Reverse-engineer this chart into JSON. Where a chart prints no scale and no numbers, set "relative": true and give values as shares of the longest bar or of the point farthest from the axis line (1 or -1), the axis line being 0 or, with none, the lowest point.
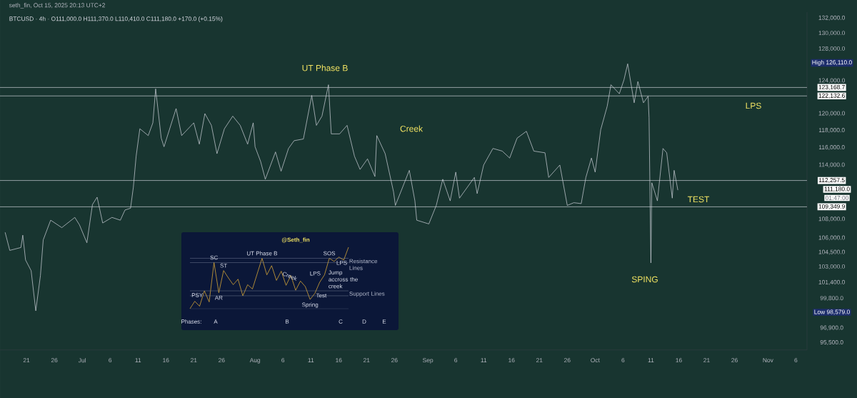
{
  "chart_data": [
    {
      "type": "line",
      "title": "BTCUSD · 4h · O111,000.0 H111,370.0 L110,410.0 C111,180.0 +170.0 (+0.15%)",
      "subtitle": "seth_fin, Oct 15, 2025 20:13 UTC+2",
      "color": "#c9cdd6",
      "line_style": "solid",
      "log": "y",
      "x": [
        "2025-06-17T04:00",
        "2025-06-18T00:00",
        "2025-06-20T00:00",
        "2025-06-20T08:00",
        "2025-06-20T20:00",
        "2025-06-21T20:00",
        "2025-06-22T16:00",
        "2025-06-23T12:00",
        "2025-06-24T00:00",
        "2025-06-25T08:00",
        "2025-06-27T08:00",
        "2025-06-29T16:00",
        "2025-06-30T12:00",
        "2025-07-01T20:00",
        "2025-07-02T20:00",
        "2025-07-03T16:00",
        "2025-07-04T16:00",
        "2025-07-06T08:00",
        "2025-07-07T20:00",
        "2025-07-08T16:00",
        "2025-07-09T16:00",
        "2025-07-10T04:00",
        "2025-07-10T16:00",
        "2025-07-11T08:00",
        "2025-07-12T20:00",
        "2025-07-13T16:00",
        "2025-07-14T04:00",
        "2025-07-15T04:00",
        "2025-07-15T16:00",
        "2025-07-17T20:00",
        "2025-07-18T20:00",
        "2025-07-21T00:00",
        "2025-07-22T00:00",
        "2025-07-23T00:00",
        "2025-07-24T04:00",
        "2025-07-25T04:00",
        "2025-07-26T12:00",
        "2025-07-28T00:00",
        "2025-07-29T08:00",
        "2025-07-30T16:00",
        "2025-07-31T16:00",
        "2025-08-01T00:00",
        "2025-08-02T00:00",
        "2025-08-02T20:00",
        "2025-08-04T16:00",
        "2025-08-05T16:00",
        "2025-08-07T00:00",
        "2025-08-08T00:00",
        "2025-08-09T16:00",
        "2025-08-11T04:00",
        "2025-08-12T00:00",
        "2025-08-13T00:00",
        "2025-08-14T04:00",
        "2025-08-14T16:00",
        "2025-08-16T04:00",
        "2025-08-17T12:00",
        "2025-08-18T20:00",
        "2025-08-19T20:00",
        "2025-08-21T04:00",
        "2025-08-22T12:00",
        "2025-08-22T20:00",
        "2025-08-24T08:00",
        "2025-08-25T20:00",
        "2025-08-26T04:00",
        "2025-08-28T16:00",
        "2025-08-29T16:00",
        "2025-08-30T00:00",
        "2025-09-01T04:00",
        "2025-09-02T12:00",
        "2025-09-03T16:00",
        "2025-09-05T00:00",
        "2025-09-06T00:00",
        "2025-09-06T16:00",
        "2025-09-09T08:00",
        "2025-09-09T20:00",
        "2025-09-11T00:00",
        "2025-09-12T16:00",
        "2025-09-14T08:00",
        "2025-09-15T16:00",
        "2025-09-17T00:00",
        "2025-09-18T16:00",
        "2025-09-20T00:00",
        "2025-09-22T00:00",
        "2025-09-22T16:00",
        "2025-09-24T16:00",
        "2025-09-26T00:00",
        "2025-09-27T04:00",
        "2025-09-28T12:00",
        "2025-09-29T08:00",
        "2025-09-30T08:00",
        "2025-10-01T00:00",
        "2025-10-02T00:00",
        "2025-10-03T04:00",
        "2025-10-03T20:00",
        "2025-10-05T08:00",
        "2025-10-06T04:00",
        "2025-10-06T20:00",
        "2025-10-08T00:00",
        "2025-10-08T16:00",
        "2025-10-09T16:00",
        "2025-10-10T12:00",
        "2025-10-10T16:00",
        "2025-10-10T20:00",
        "2025-10-11T00:00",
        "2025-10-11T04:00",
        "2025-10-12T04:00",
        "2025-10-13T04:00",
        "2025-10-13T20:00",
        "2025-10-14T20:00",
        "2025-10-15T04:00",
        "2025-10-15T20:00"
      ],
      "values": [
        106600,
        104700,
        105000,
        106300,
        103700,
        102600,
        98579,
        102100,
        105800,
        107900,
        107100,
        108200,
        107400,
        105500,
        109600,
        110400,
        107600,
        108200,
        107900,
        109000,
        109200,
        111500,
        115000,
        118200,
        117400,
        118900,
        123000,
        117100,
        116100,
        120600,
        117400,
        118900,
        116400,
        120000,
        118600,
        115300,
        118200,
        119700,
        118600,
        116400,
        118900,
        116100,
        114400,
        112400,
        115500,
        113300,
        115900,
        116800,
        117000,
        122200,
        118600,
        119700,
        123500,
        117600,
        117600,
        118600,
        115000,
        113500,
        114700,
        112700,
        117400,
        115300,
        111000,
        109500,
        113400,
        110000,
        107900,
        107500,
        109500,
        112400,
        110000,
        113200,
        110300,
        112600,
        110800,
        114000,
        115900,
        115600,
        114800,
        117100,
        117900,
        115600,
        115400,
        112600,
        114000,
        109500,
        109800,
        109700,
        112600,
        114800,
        113200,
        118100,
        120900,
        123500,
        122400,
        124100,
        126110,
        121300,
        123900,
        121300,
        122100,
        119500,
        111100,
        103400,
        112000,
        110000,
        115900,
        115400,
        110300,
        113400,
        111180
      ],
      "xlim": [
        "2025-06-16T06:00",
        "2025-11-08T00:00"
      ],
      "ylim": [
        94800,
        132800
      ],
      "xticks": [
        {
          "value": "2025-06-21",
          "label": "21"
        },
        {
          "value": "2025-06-26",
          "label": "26"
        },
        {
          "value": "2025-07-01",
          "label": "Jul"
        },
        {
          "value": "2025-07-06",
          "label": "6"
        },
        {
          "value": "2025-07-11",
          "label": "11"
        },
        {
          "value": "2025-07-16",
          "label": "16"
        },
        {
          "value": "2025-07-21",
          "label": "21"
        },
        {
          "value": "2025-07-26",
          "label": "26"
        },
        {
          "value": "2025-08-01",
          "label": "Aug"
        },
        {
          "value": "2025-08-06",
          "label": "6"
        },
        {
          "value": "2025-08-11",
          "label": "11"
        },
        {
          "value": "2025-08-16",
          "label": "16"
        },
        {
          "value": "2025-08-21",
          "label": "21"
        },
        {
          "value": "2025-08-26",
          "label": "26"
        },
        {
          "value": "2025-09-01",
          "label": "Sep"
        },
        {
          "value": "2025-09-06",
          "label": "6"
        },
        {
          "value": "2025-09-11",
          "label": "11"
        },
        {
          "value": "2025-09-16",
          "label": "16"
        },
        {
          "value": "2025-09-21",
          "label": "21"
        },
        {
          "value": "2025-09-26",
          "label": "26"
        },
        {
          "value": "2025-10-01",
          "label": "Oct"
        },
        {
          "value": "2025-10-06",
          "label": "6"
        },
        {
          "value": "2025-10-11",
          "label": "11"
        },
        {
          "value": "2025-10-16",
          "label": "16"
        },
        {
          "value": "2025-10-21",
          "label": "21"
        },
        {
          "value": "2025-10-26",
          "label": "26"
        },
        {
          "value": "2025-11-01",
          "label": "Nov"
        },
        {
          "value": "2025-11-06",
          "label": "6"
        }
      ],
      "yticks": [
        {
          "value": 132000,
          "label": "132,000.0"
        },
        {
          "value": 130000,
          "label": "130,000.0"
        },
        {
          "value": 128000,
          "label": "128,000.0"
        },
        {
          "value": 124000,
          "label": "124,000.0"
        },
        {
          "value": 120000,
          "label": "120,000.0"
        },
        {
          "value": 118000,
          "label": "118,000.0"
        },
        {
          "value": 116000,
          "label": "116,000.0"
        },
        {
          "value": 114000,
          "label": "114,000.0"
        },
        {
          "value": 108000,
          "label": "108,000.0"
        },
        {
          "value": 106000,
          "label": "106,000.0"
        },
        {
          "value": 104500,
          "label": "104,500.0"
        },
        {
          "value": 103000,
          "label": "103,000.0"
        },
        {
          "value": 101400,
          "label": "101,400.0"
        },
        {
          "value": 99800,
          "label": "99,800.0"
        },
        {
          "value": 96900,
          "label": "96,900.0"
        },
        {
          "value": 95500,
          "label": "95,500.0"
        }
      ],
      "ref_lines": [
        {
          "axis": "y",
          "value": 123168.7,
          "label": "123,168.7",
          "color": "#d1d4dc"
        },
        {
          "axis": "y",
          "value": 122132.6,
          "label": "122,132.6",
          "color": "#d1d4dc"
        },
        {
          "axis": "y",
          "value": 112257.5,
          "label": "112,257.5",
          "color": "#d1d4dc"
        },
        {
          "axis": "y",
          "value": 109349.9,
          "label": "109,349.9",
          "color": "#d1d4dc"
        }
      ],
      "annotations": [
        "UT Phase B",
        "Creek",
        "LPS",
        "TEST",
        "SPING",
        "01:47:00",
        "High 126,110.0",
        "Low 98,579.0",
        "111,180.0"
      ]
    },
    {
      "type": "line",
      "relative": true,
      "title": "@Seth_fin",
      "color": "#d4a537",
      "categories": [
        null,
        null,
        null,
        null,
        null,
        null,
        null,
        null,
        null,
        null,
        null,
        null,
        null,
        null,
        null,
        null,
        null,
        null,
        null,
        null,
        null,
        null,
        null,
        null,
        null,
        null,
        null,
        null,
        null,
        null,
        null,
        null,
        null,
        null
      ],
      "values": [
        0,
        0.12,
        0.04,
        0.29,
        0.11,
        0.75,
        0.26,
        0.62,
        0.5,
        0.39,
        0.48,
        0.21,
        0.39,
        0.32,
        0.57,
        0.82,
        0.55,
        0.7,
        0.46,
        0.61,
        0.38,
        0.54,
        0.3,
        0.45,
        0.36,
        0.15,
        0.25,
        0.43,
        0.55,
        0.82,
        0.77,
        0.84,
        0.79,
        1
      ],
      "ref_lines": [
        {
          "axis": "y",
          "value": 0.82,
          "label": "Resistance Lines",
          "color": "#8e95a8"
        },
        {
          "axis": "y",
          "value": 0.75,
          "color": "#8e95a8"
        },
        {
          "axis": "y",
          "value": 0.29,
          "label": "Support Lines",
          "color": "#8e95a8"
        },
        {
          "axis": "y",
          "value": 0.21,
          "color": "#8e95a8"
        }
      ],
      "annotations": [
        "PSY",
        "SC",
        "AR",
        "ST",
        "UT Phase B",
        "Creek",
        "Spring",
        "Test",
        "LPS",
        "SOS",
        "LPS",
        "Jump accross the creek",
        "Phases:",
        "A",
        "B",
        "C",
        "D",
        "E"
      ]
    }
  ]
}
